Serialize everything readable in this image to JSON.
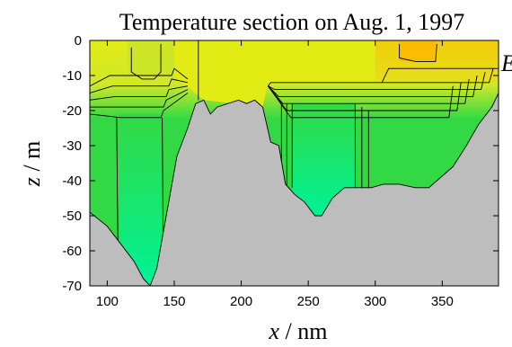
{
  "chart_data": {
    "type": "heatmap",
    "title": "Temperature section on Aug. 1, 1997",
    "xlabel_var": "x",
    "xlabel_unit": " / nm",
    "ylabel_var": "z",
    "ylabel_unit": " / m",
    "edge_text": "E",
    "xlim": [
      87,
      392
    ],
    "ylim": [
      -70,
      0
    ],
    "x_ticks": [
      100,
      150,
      200,
      250,
      300,
      350
    ],
    "y_ticks": [
      0,
      -10,
      -20,
      -30,
      -40,
      -50,
      -60,
      -70
    ],
    "colors": {
      "bottom": "#bdbdbd",
      "cold": "#00f296",
      "mid": "#33d944",
      "warm": "#e2ec14",
      "hot": "#ffb400"
    },
    "bathymetry": [
      [
        87,
        -49
      ],
      [
        100,
        -53
      ],
      [
        110,
        -58
      ],
      [
        120,
        -63
      ],
      [
        127,
        -68
      ],
      [
        132,
        -70
      ],
      [
        137,
        -65
      ],
      [
        145,
        -48
      ],
      [
        152,
        -33
      ],
      [
        160,
        -25
      ],
      [
        166,
        -18
      ],
      [
        172,
        -17
      ],
      [
        177,
        -21
      ],
      [
        182,
        -19
      ],
      [
        190,
        -18
      ],
      [
        198,
        -17
      ],
      [
        204,
        -18
      ],
      [
        210,
        -17
      ],
      [
        216,
        -19
      ],
      [
        222,
        -29
      ],
      [
        228,
        -30
      ],
      [
        233,
        -41
      ],
      [
        240,
        -44
      ],
      [
        247,
        -46
      ],
      [
        255,
        -50
      ],
      [
        260,
        -50
      ],
      [
        268,
        -45
      ],
      [
        277,
        -42
      ],
      [
        287,
        -42
      ],
      [
        297,
        -42
      ],
      [
        306,
        -41
      ],
      [
        318,
        -41
      ],
      [
        330,
        -42
      ],
      [
        340,
        -42
      ],
      [
        346,
        -40
      ],
      [
        358,
        -36
      ],
      [
        368,
        -30
      ],
      [
        377,
        -24
      ],
      [
        387,
        -19
      ],
      [
        392,
        -15
      ]
    ]
  }
}
